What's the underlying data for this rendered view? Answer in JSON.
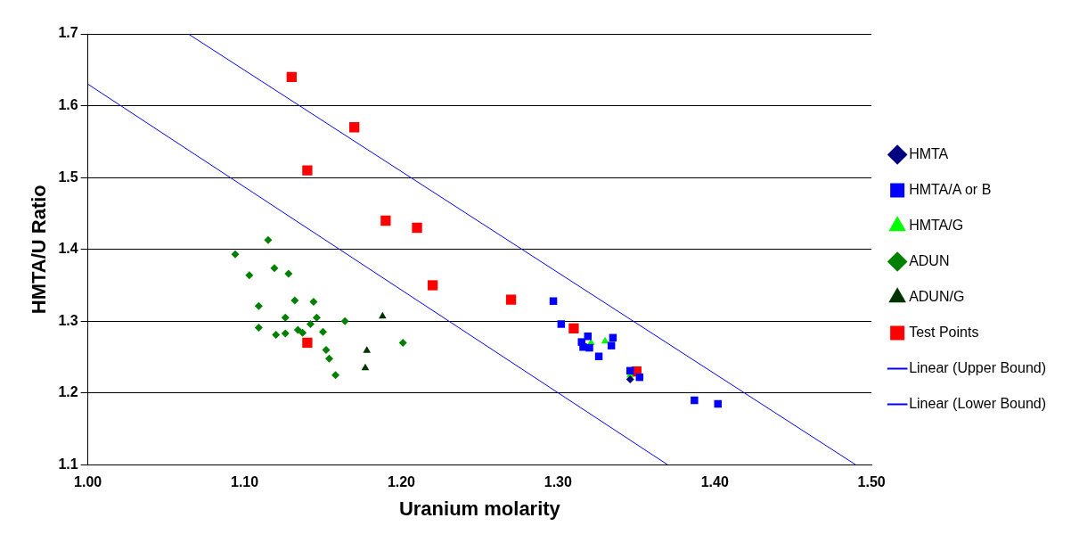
{
  "chart_data": {
    "type": "scatter",
    "xlabel": "Uranium molarity",
    "ylabel": "HMTA/U Ratio",
    "xlim": [
      1.0,
      1.5
    ],
    "xticks": [
      {
        "value": 1.0,
        "label": "1.00"
      },
      {
        "value": 1.1,
        "label": "1.10"
      },
      {
        "value": 1.2,
        "label": "1.20"
      },
      {
        "value": 1.3,
        "label": "1.30"
      },
      {
        "value": 1.4,
        "label": "1.40"
      },
      {
        "value": 1.5,
        "label": "1.50"
      }
    ],
    "ylim": [
      1.1,
      1.7
    ],
    "yticks": [
      1.1,
      1.2,
      1.3,
      1.4,
      1.5,
      1.6,
      1.7
    ],
    "grid": "y",
    "legend": "right",
    "series": [
      {
        "name": "HMTA",
        "color": "#000080",
        "marker": "diamond",
        "x": [
          1.346
        ],
        "values": [
          1.219
        ]
      },
      {
        "name": "HMTA/A or B",
        "color": "#0000ff",
        "marker": "square",
        "x": [
          1.297,
          1.302,
          1.319,
          1.315,
          1.316,
          1.32,
          1.335,
          1.334,
          1.326,
          1.346,
          1.352,
          1.387,
          1.402
        ],
        "values": [
          1.328,
          1.296,
          1.279,
          1.271,
          1.264,
          1.263,
          1.277,
          1.266,
          1.251,
          1.231,
          1.222,
          1.19,
          1.185
        ]
      },
      {
        "name": "HMTA/G",
        "color": "#00ff00",
        "marker": "triangle",
        "x": [
          1.321,
          1.33,
          1.346
        ],
        "values": [
          1.27,
          1.272,
          1.225
        ]
      },
      {
        "name": "ADUN",
        "color": "#008000",
        "marker": "diamond",
        "x": [
          1.094,
          1.115,
          1.103,
          1.119,
          1.128,
          1.109,
          1.132,
          1.144,
          1.109,
          1.126,
          1.146,
          1.12,
          1.126,
          1.134,
          1.142,
          1.137,
          1.15,
          1.164,
          1.152,
          1.154,
          1.158,
          1.201
        ],
        "values": [
          1.393,
          1.413,
          1.364,
          1.374,
          1.366,
          1.321,
          1.329,
          1.327,
          1.291,
          1.305,
          1.305,
          1.281,
          1.283,
          1.288,
          1.296,
          1.284,
          1.285,
          1.3,
          1.26,
          1.248,
          1.225,
          1.27
        ]
      },
      {
        "name": "ADUN/G",
        "color": "#003300",
        "marker": "triangle",
        "x": [
          1.188,
          1.178,
          1.177
        ],
        "values": [
          1.307,
          1.259,
          1.235
        ]
      },
      {
        "name": "Test Points",
        "color": "#ff0000",
        "marker": "square",
        "x": [
          1.13,
          1.17,
          1.14,
          1.19,
          1.21,
          1.22,
          1.27,
          1.31,
          1.35,
          1.14
        ],
        "values": [
          1.64,
          1.57,
          1.51,
          1.44,
          1.43,
          1.35,
          1.33,
          1.29,
          1.23,
          1.27
        ]
      },
      {
        "name": "Linear (Upper Bound)",
        "type": "line",
        "color": "#0000ff",
        "marker": "none",
        "x": [
          1.064,
          1.49
        ],
        "values": [
          1.7,
          1.1
        ]
      },
      {
        "name": "Linear (Lower Bound)",
        "type": "line",
        "color": "#0000ff",
        "marker": "none",
        "x": [
          1.0,
          1.37
        ],
        "values": [
          1.63,
          1.1
        ]
      }
    ]
  }
}
